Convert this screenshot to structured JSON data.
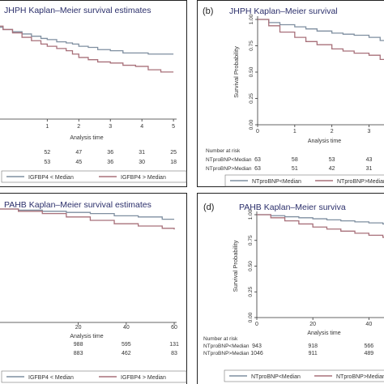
{
  "chart_data": [
    {
      "type": "line",
      "panel_label": "",
      "title": "JHPH Kaplan–Meier survival estimates",
      "xlabel": "Analysis time",
      "ylabel": "",
      "xlim": [
        -0.6,
        5.1
      ],
      "ylim": [
        0,
        1
      ],
      "x_ticks": [
        1,
        2,
        3,
        4,
        5
      ],
      "y_ticks": [],
      "risk_table": {
        "header": "",
        "times": [
          1,
          2,
          3,
          4,
          5
        ],
        "rows": [
          {
            "label": "",
            "values": [
              "52",
              "47",
              "36",
              "31",
              "25"
            ]
          },
          {
            "label": "",
            "values": [
              "53",
              "45",
              "36",
              "30",
              "18"
            ]
          }
        ]
      },
      "series": [
        {
          "name": "IGFBP4 < Median",
          "color": "#7f8fa0",
          "x": [
            -0.6,
            -0.4,
            -0.1,
            0.2,
            0.5,
            0.8,
            1.0,
            1.3,
            1.6,
            1.8,
            2.0,
            2.3,
            2.6,
            3.0,
            3.4,
            3.8,
            4.2,
            4.6,
            5.0
          ],
          "y": [
            0.93,
            0.91,
            0.89,
            0.87,
            0.85,
            0.83,
            0.82,
            0.8,
            0.79,
            0.78,
            0.76,
            0.75,
            0.73,
            0.72,
            0.7,
            0.7,
            0.69,
            0.69,
            0.69
          ]
        },
        {
          "name": "IGFBP4 > Median",
          "color": "#a8707a",
          "x": [
            -0.6,
            -0.4,
            -0.1,
            0.2,
            0.5,
            0.8,
            1.0,
            1.3,
            1.6,
            1.8,
            2.0,
            2.3,
            2.6,
            3.0,
            3.4,
            3.8,
            4.2,
            4.6,
            5.0
          ],
          "y": [
            0.94,
            0.91,
            0.88,
            0.84,
            0.81,
            0.78,
            0.76,
            0.74,
            0.72,
            0.69,
            0.66,
            0.64,
            0.62,
            0.61,
            0.59,
            0.58,
            0.55,
            0.53,
            0.53
          ]
        }
      ]
    },
    {
      "type": "line",
      "panel_label": "(b)",
      "title": "JHPH Kaplan–Meier survival",
      "xlabel": "Analysis time",
      "ylabel": "Survival Probability",
      "xlim": [
        0,
        3.6
      ],
      "ylim": [
        0,
        1
      ],
      "x_ticks": [
        0,
        1,
        2,
        3
      ],
      "y_ticks": [
        "0.00",
        "0.25",
        "0.50",
        "0.75",
        "1.00"
      ],
      "risk_table": {
        "header": "Number at risk",
        "times": [
          0,
          1,
          2,
          3
        ],
        "rows": [
          {
            "label": "NTproBNP<Median",
            "values": [
              "63",
              "58",
              "53",
              "43"
            ]
          },
          {
            "label": "NTproBNP>Median",
            "values": [
              "63",
              "51",
              "42",
              "31"
            ]
          }
        ]
      },
      "series": [
        {
          "name": "NTproBNP<Median",
          "color": "#7f8fa0",
          "x": [
            0,
            0.3,
            0.6,
            1.0,
            1.3,
            1.6,
            2.0,
            2.3,
            2.6,
            3.0,
            3.3,
            3.6
          ],
          "y": [
            1.0,
            0.97,
            0.95,
            0.93,
            0.91,
            0.89,
            0.87,
            0.86,
            0.85,
            0.83,
            0.8,
            0.78
          ]
        },
        {
          "name": "NTproBNP>Median",
          "color": "#a8707a",
          "x": [
            0,
            0.3,
            0.6,
            1.0,
            1.3,
            1.6,
            2.0,
            2.3,
            2.6,
            3.0,
            3.3,
            3.6
          ],
          "y": [
            1.0,
            0.94,
            0.88,
            0.83,
            0.79,
            0.76,
            0.72,
            0.7,
            0.68,
            0.66,
            0.62,
            0.6
          ]
        }
      ]
    },
    {
      "type": "line",
      "panel_label": "",
      "title": "PAHB Kaplan–Meier survival estimates",
      "xlabel": "Analysis time",
      "ylabel": "",
      "xlim": [
        -14,
        61
      ],
      "ylim": [
        0,
        1
      ],
      "x_ticks": [
        20,
        40,
        60
      ],
      "y_ticks": [],
      "risk_table": {
        "header": "",
        "times": [
          20,
          40,
          60
        ],
        "rows": [
          {
            "label": "",
            "values": [
              "988",
              "595",
              "131"
            ]
          },
          {
            "label": "",
            "values": [
              "883",
              "462",
              "83"
            ]
          }
        ]
      },
      "series": [
        {
          "name": "IGFBP4 < Median",
          "color": "#7f8fa0",
          "x": [
            -14,
            -5,
            5,
            15,
            25,
            35,
            45,
            55,
            60
          ],
          "y": [
            1.0,
            0.99,
            0.98,
            0.97,
            0.96,
            0.94,
            0.93,
            0.91,
            0.91
          ]
        },
        {
          "name": "IGFBP4 > Median",
          "color": "#a8707a",
          "x": [
            -14,
            -5,
            5,
            15,
            25,
            35,
            45,
            55,
            60
          ],
          "y": [
            1.0,
            0.98,
            0.96,
            0.93,
            0.9,
            0.87,
            0.85,
            0.83,
            0.82
          ]
        }
      ]
    },
    {
      "type": "line",
      "panel_label": "(d)",
      "title": "PAHB Kaplan–Meier surviva",
      "xlabel": "Analysis time",
      "ylabel": "Survival Probability",
      "xlim": [
        0,
        48
      ],
      "ylim": [
        0,
        1
      ],
      "x_ticks": [
        0,
        20,
        40
      ],
      "y_ticks": [
        "0.00",
        "0.25",
        "0.50",
        "0.75",
        "1.00"
      ],
      "risk_table": {
        "header": "Number at risk",
        "times": [
          0,
          20,
          40
        ],
        "rows": [
          {
            "label": "NTproBNP<Median",
            "values": [
              "943",
              "918",
              "566"
            ]
          },
          {
            "label": "NTproBNP>Median",
            "values": [
              "1046",
              "911",
              "489"
            ]
          }
        ]
      },
      "series": [
        {
          "name": "NTproBNP<Median",
          "color": "#7f8fa0",
          "x": [
            0,
            5,
            10,
            15,
            20,
            25,
            30,
            35,
            40,
            45,
            48
          ],
          "y": [
            1.0,
            0.99,
            0.98,
            0.97,
            0.96,
            0.95,
            0.94,
            0.93,
            0.92,
            0.91,
            0.91
          ]
        },
        {
          "name": "NTproBNP>Median",
          "color": "#a8707a",
          "x": [
            0,
            5,
            10,
            15,
            20,
            25,
            30,
            35,
            40,
            45,
            48
          ],
          "y": [
            1.0,
            0.97,
            0.94,
            0.91,
            0.88,
            0.86,
            0.84,
            0.82,
            0.8,
            0.78,
            0.77
          ]
        }
      ]
    }
  ]
}
